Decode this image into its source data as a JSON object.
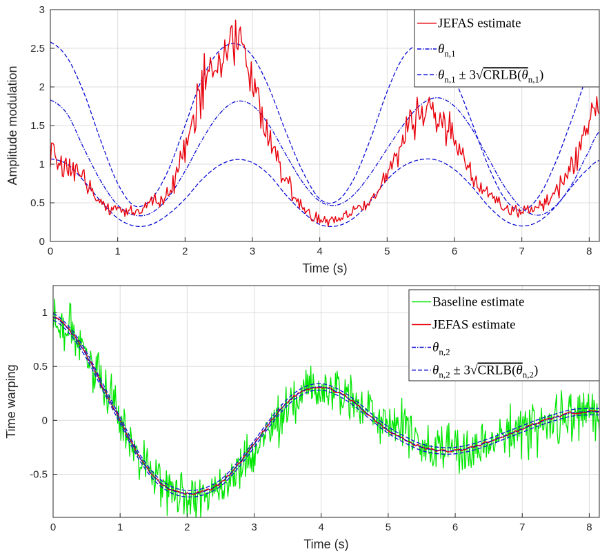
{
  "colors": {
    "jefas": "#e8000b",
    "baseline": "#00e600",
    "theta": "#0a0ad6",
    "grid": "#dcdcdc",
    "axis": "#262626"
  },
  "chart_data": [
    {
      "type": "line",
      "xlabel": "Time (s)",
      "ylabel": "Amplitude modulation",
      "xlim": [
        0,
        8.15
      ],
      "ylim": [
        0,
        3
      ],
      "xticks": [
        "0",
        "1",
        "2",
        "3",
        "4",
        "5",
        "6",
        "7",
        "8"
      ],
      "yticks": [
        "0",
        "0.5",
        "1",
        "1.5",
        "2",
        "2.5",
        "3"
      ],
      "grid": true,
      "legend_position": "top-right",
      "x": [
        0.0,
        0.25,
        0.5,
        0.75,
        1.0,
        1.25,
        1.5,
        1.75,
        2.0,
        2.25,
        2.5,
        2.75,
        3.0,
        3.25,
        3.5,
        3.75,
        4.0,
        4.25,
        4.5,
        4.75,
        5.0,
        5.25,
        5.5,
        5.75,
        6.0,
        6.25,
        6.5,
        6.75,
        7.0,
        7.25,
        7.5,
        7.75,
        8.0,
        8.15
      ],
      "series": [
        {
          "name": "JEFAS estimate",
          "style": "solid",
          "color_key": "jefas",
          "values": [
            1.1,
            0.95,
            0.8,
            0.5,
            0.42,
            0.4,
            0.5,
            0.6,
            1.2,
            2.0,
            2.25,
            2.6,
            2.1,
            1.3,
            0.8,
            0.45,
            0.28,
            0.3,
            0.4,
            0.55,
            0.85,
            1.3,
            1.7,
            1.6,
            1.35,
            0.9,
            0.6,
            0.45,
            0.4,
            0.45,
            0.65,
            1.0,
            1.5,
            1.7
          ]
        },
        {
          "name": "θn,1",
          "style": "dashdot",
          "color_key": "theta",
          "values": [
            1.83,
            1.65,
            1.2,
            0.78,
            0.47,
            0.34,
            0.37,
            0.57,
            0.91,
            1.31,
            1.64,
            1.81,
            1.76,
            1.5,
            1.12,
            0.76,
            0.52,
            0.47,
            0.6,
            0.87,
            1.2,
            1.52,
            1.77,
            1.86,
            1.75,
            1.47,
            1.08,
            0.7,
            0.43,
            0.34,
            0.46,
            0.75,
            1.17,
            1.42
          ]
        },
        {
          "name": "θn,1 ± 3√CRLB(θn,1) upper",
          "style": "dashed",
          "color_key": "theta",
          "values": [
            2.58,
            2.38,
            1.92,
            1.3,
            0.75,
            0.46,
            0.55,
            0.92,
            1.5,
            2.1,
            2.46,
            2.56,
            2.4,
            1.98,
            1.41,
            0.9,
            0.55,
            0.52,
            0.8,
            1.32,
            1.94,
            2.4,
            2.55,
            2.45,
            2.1,
            1.56,
            0.98,
            0.55,
            0.4,
            0.58,
            1.02,
            1.6,
            2.2,
            2.45
          ]
        },
        {
          "name": "θn,1 ± 3√CRLB(θn,1) lower",
          "style": "dashed",
          "color_key": "theta",
          "values": [
            1.07,
            1.0,
            0.78,
            0.52,
            0.3,
            0.2,
            0.22,
            0.35,
            0.55,
            0.8,
            0.98,
            1.06,
            1.02,
            0.86,
            0.6,
            0.38,
            0.22,
            0.2,
            0.3,
            0.52,
            0.8,
            0.98,
            1.06,
            1.05,
            0.93,
            0.72,
            0.46,
            0.27,
            0.2,
            0.26,
            0.45,
            0.72,
            0.95,
            1.05
          ]
        }
      ],
      "legend": [
        {
          "label": "JEFAS estimate",
          "style": "solid",
          "color_key": "jefas"
        },
        {
          "label": "θn,1",
          "style": "dashdot",
          "color_key": "theta"
        },
        {
          "label": "θn,1 ± 3√CRLB(θn,1)",
          "style": "dashed",
          "color_key": "theta"
        }
      ]
    },
    {
      "type": "line",
      "xlabel": "Time (s)",
      "ylabel": "Time warping",
      "xlim": [
        0,
        8.15
      ],
      "ylim": [
        -0.9,
        1.25
      ],
      "xticks": [
        "0",
        "1",
        "2",
        "3",
        "4",
        "5",
        "6",
        "7",
        "8"
      ],
      "yticks": [
        "-0.5",
        "0",
        "0.5",
        "1"
      ],
      "grid": true,
      "legend_position": "top-right",
      "x": [
        0.0,
        0.25,
        0.5,
        0.75,
        1.0,
        1.25,
        1.5,
        1.75,
        2.0,
        2.25,
        2.5,
        2.75,
        3.0,
        3.25,
        3.5,
        3.75,
        4.0,
        4.25,
        4.5,
        4.75,
        5.0,
        5.25,
        5.5,
        5.75,
        6.0,
        6.25,
        6.5,
        6.75,
        7.0,
        7.25,
        7.5,
        7.75,
        8.0,
        8.15
      ],
      "series": [
        {
          "name": "Baseline estimate",
          "style": "solid",
          "color_key": "baseline",
          "values": [
            0.95,
            0.85,
            0.6,
            0.3,
            0.0,
            -0.3,
            -0.5,
            -0.62,
            -0.7,
            -0.7,
            -0.6,
            -0.45,
            -0.3,
            -0.1,
            0.1,
            0.25,
            0.3,
            0.25,
            0.18,
            0.1,
            0.0,
            -0.1,
            -0.18,
            -0.25,
            -0.28,
            -0.28,
            -0.22,
            -0.15,
            -0.1,
            -0.05,
            0.0,
            0.05,
            0.08,
            0.05
          ],
          "noise": 0.16
        },
        {
          "name": "JEFAS estimate",
          "style": "solid",
          "color_key": "jefas",
          "values": [
            0.96,
            0.83,
            0.6,
            0.3,
            0.0,
            -0.3,
            -0.52,
            -0.64,
            -0.68,
            -0.66,
            -0.58,
            -0.42,
            -0.22,
            -0.01,
            0.17,
            0.28,
            0.31,
            0.26,
            0.16,
            0.03,
            -0.09,
            -0.18,
            -0.25,
            -0.28,
            -0.28,
            -0.25,
            -0.2,
            -0.14,
            -0.08,
            -0.02,
            0.03,
            0.07,
            0.08,
            0.08
          ]
        },
        {
          "name": "θn,2",
          "style": "dashdot",
          "color_key": "theta",
          "values": [
            0.96,
            0.83,
            0.6,
            0.3,
            0.0,
            -0.3,
            -0.52,
            -0.64,
            -0.68,
            -0.66,
            -0.58,
            -0.42,
            -0.22,
            -0.01,
            0.17,
            0.28,
            0.31,
            0.26,
            0.16,
            0.03,
            -0.09,
            -0.18,
            -0.25,
            -0.28,
            -0.28,
            -0.25,
            -0.2,
            -0.14,
            -0.08,
            -0.02,
            0.03,
            0.07,
            0.08,
            0.08
          ]
        }
      ],
      "confidence_band": {
        "name": "θn,2 ± 3√CRLB(θn,2)",
        "style": "dashed",
        "color_key": "theta",
        "halfwidth": 0.03
      },
      "legend": [
        {
          "label": "Baseline estimate",
          "style": "solid",
          "color_key": "baseline"
        },
        {
          "label": "JEFAS estimate",
          "style": "solid",
          "color_key": "jefas"
        },
        {
          "label": "θn,2",
          "style": "dashdot",
          "color_key": "theta"
        },
        {
          "label": "θn,2 ± 3√CRLB(θn,2)",
          "style": "dashed",
          "color_key": "theta"
        }
      ]
    }
  ]
}
